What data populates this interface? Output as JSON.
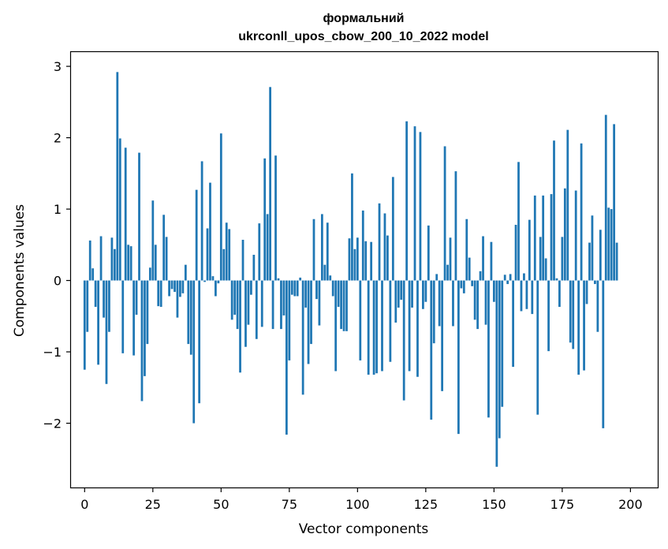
{
  "chart_data": {
    "type": "bar",
    "title": "формальний",
    "subtitle": "ukrconll_upos_cbow_200_10_2022 model",
    "xlabel": "Vector components",
    "ylabel": "Components values",
    "xlim": [
      -5,
      210
    ],
    "ylim": [
      -2.9,
      3.2
    ],
    "xticks": [
      0,
      25,
      50,
      75,
      100,
      125,
      150,
      175,
      200
    ],
    "yticks": [
      -2,
      -1,
      0,
      1,
      2,
      3
    ],
    "bar_color": "#1f77b4",
    "values": [
      -1.25,
      -0.72,
      0.56,
      0.17,
      -0.37,
      -1.18,
      0.62,
      -0.52,
      -1.45,
      -0.72,
      0.6,
      0.44,
      2.92,
      1.99,
      -1.02,
      1.86,
      0.5,
      0.48,
      -1.05,
      -0.48,
      1.79,
      -1.69,
      -1.34,
      -0.89,
      0.18,
      1.12,
      0.5,
      -0.36,
      -0.37,
      0.92,
      0.61,
      -0.22,
      -0.12,
      -0.16,
      -0.52,
      -0.23,
      -0.18,
      0.22,
      -0.89,
      -1.04,
      -2.0,
      1.27,
      -1.72,
      1.67,
      -0.02,
      0.73,
      1.37,
      0.06,
      -0.22,
      -0.04,
      2.06,
      0.44,
      0.81,
      0.72,
      -0.55,
      -0.48,
      -0.68,
      -1.29,
      0.57,
      -0.93,
      -0.62,
      -0.2,
      0.36,
      -0.82,
      0.8,
      -0.65,
      1.71,
      0.93,
      2.71,
      -0.68,
      1.75,
      0.03,
      -0.68,
      -0.49,
      -2.16,
      -1.12,
      -0.2,
      -0.22,
      -0.22,
      0.04,
      -1.6,
      -0.38,
      -1.17,
      -0.89,
      0.86,
      -0.26,
      -0.63,
      0.93,
      0.22,
      0.81,
      0.07,
      -0.22,
      -1.27,
      -0.37,
      -0.68,
      -0.71,
      -0.71,
      0.59,
      1.5,
      0.44,
      0.6,
      -1.12,
      0.98,
      0.55,
      -1.32,
      0.54,
      -1.32,
      -1.3,
      1.08,
      -1.27,
      0.94,
      0.63,
      -1.14,
      1.45,
      -0.59,
      -0.38,
      -0.27,
      -1.68,
      2.23,
      -1.27,
      -0.38,
      2.16,
      -1.35,
      2.08,
      -0.4,
      -0.3,
      0.77,
      -1.95,
      -0.88,
      0.09,
      -0.64,
      -1.55,
      1.88,
      0.22,
      0.6,
      -0.64,
      1.53,
      -2.15,
      -0.11,
      -0.18,
      0.86,
      0.32,
      -0.08,
      -0.55,
      -0.68,
      0.13,
      0.62,
      -0.62,
      -1.92,
      0.54,
      -0.3,
      -2.61,
      -2.21,
      -1.77,
      0.08,
      -0.05,
      0.09,
      -1.21,
      0.78,
      1.66,
      -0.43,
      0.1,
      -0.4,
      0.85,
      -0.47,
      1.19,
      -1.88,
      0.61,
      1.19,
      0.31,
      -0.99,
      1.21,
      1.96,
      0.03,
      -0.37,
      0.61,
      1.29,
      2.11,
      -0.87,
      -0.96,
      1.26,
      -1.32,
      1.92,
      -1.26,
      -0.33,
      0.53,
      0.91,
      -0.05,
      -0.72,
      0.71,
      -2.07,
      2.32,
      1.02,
      1.0,
      2.19,
      0.53
    ]
  }
}
